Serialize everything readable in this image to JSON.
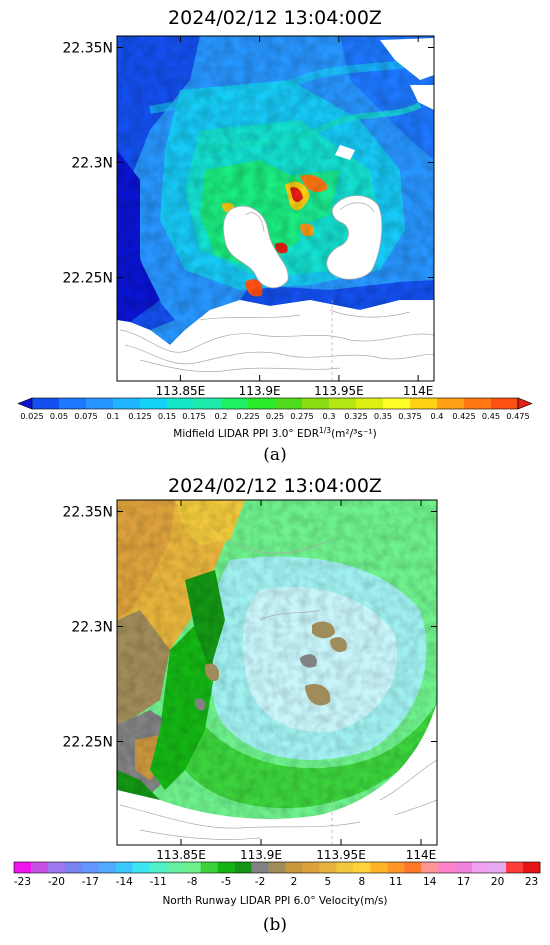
{
  "figure": {
    "label_a": "(a)",
    "label_b": "(b)"
  },
  "colors": {
    "land_contour": "#aaaaaa",
    "axis": "#000000",
    "airport_island": "#ffffff"
  },
  "chart_data": [
    {
      "type": "heatmap",
      "title": "2024/02/12  13:04:00Z",
      "x_ticks": [
        113.85,
        113.9,
        113.95,
        114
      ],
      "x_tick_labels": [
        "113.85E",
        "113.9E",
        "113.95E",
        "114E"
      ],
      "y_ticks": [
        22.25,
        22.3,
        22.35
      ],
      "y_tick_labels": [
        "22.25N",
        "22.3N",
        "22.35N"
      ],
      "xlim": [
        113.81,
        114.01
      ],
      "ylim": [
        22.205,
        22.355
      ],
      "colorbar": {
        "label": "Midfield LIDAR PPI 3.0° EDR",
        "label_sup": "1/3",
        "label_units": "(m²/³s⁻¹)",
        "tick_labels": [
          "0.025",
          "0.05",
          "0.075",
          "0.1",
          "0.125",
          "0.15",
          "0.175",
          "0.2",
          "0.225",
          "0.25",
          "0.275",
          "0.3",
          "0.325",
          "0.35",
          "0.375",
          "0.4",
          "0.425",
          "0.45",
          "0.475"
        ],
        "colors": [
          "#0a14d2",
          "#1450f0",
          "#1e78ff",
          "#2896ff",
          "#1eb4ff",
          "#14d2f5",
          "#14e6c8",
          "#1eebaa",
          "#1ef064",
          "#2aeb2a",
          "#50dc1e",
          "#8cdc14",
          "#b4e614",
          "#dcf014",
          "#ffff28",
          "#ffd214",
          "#ffa014",
          "#ff7814",
          "#ff5014",
          "#e61e14"
        ]
      },
      "values_description": "turbulence intensity field"
    },
    {
      "type": "heatmap",
      "title": "2024/02/12  13:04:00Z",
      "x_ticks": [
        113.85,
        113.9,
        113.95,
        114
      ],
      "x_tick_labels": [
        "113.85E",
        "113.9E",
        "113.95E",
        "114E"
      ],
      "y_ticks": [
        22.25,
        22.3,
        22.35
      ],
      "y_tick_labels": [
        "22.25N",
        "22.3N",
        "22.35N"
      ],
      "xlim": [
        113.81,
        114.01
      ],
      "ylim": [
        22.205,
        22.355
      ],
      "colorbar": {
        "label": "North Runway LIDAR PPI 6.0° Velocity(m/s)",
        "tick_labels": [
          "-23",
          "-20",
          "-17",
          "-14",
          "-11",
          "-8",
          "-5",
          "-2",
          "2",
          "5",
          "8",
          "11",
          "14",
          "17",
          "20",
          "23"
        ],
        "colors": [
          "#f014f0",
          "#c850e6",
          "#a078f0",
          "#7882f0",
          "#6496ff",
          "#50aaff",
          "#3cc8ff",
          "#3ce6f0",
          "#50f0c8",
          "#64f0a0",
          "#6ef08c",
          "#3cd23c",
          "#14b414",
          "#149614",
          "#828282",
          "#a08c5a",
          "#c8963c",
          "#dca03c",
          "#e6b43c",
          "#f0c83c",
          "#ffd23c",
          "#ffb428",
          "#ff9628",
          "#ff7828",
          "#ff9696",
          "#ff82c8",
          "#f082dc",
          "#f0a0f0",
          "#e6aaf0",
          "#ff3c3c",
          "#e61414"
        ]
      },
      "values_description": "radial velocity field"
    }
  ]
}
